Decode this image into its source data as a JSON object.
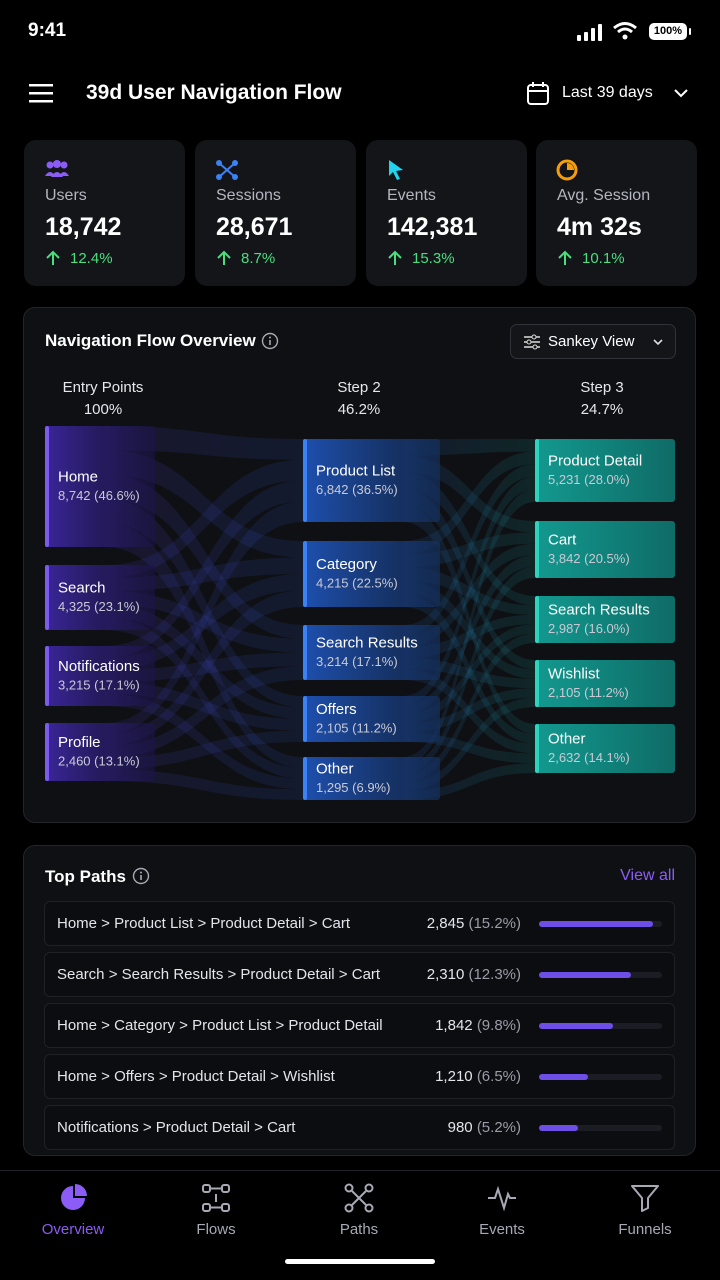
{
  "status": {
    "time": "9:41",
    "battery": "100%"
  },
  "header": {
    "title": "39d User Navigation Flow",
    "range": "Last 39 days"
  },
  "kpis": [
    {
      "label": "Users",
      "value": "18,742",
      "change": "12.4%"
    },
    {
      "label": "Sessions",
      "value": "28,671",
      "change": "8.7%"
    },
    {
      "label": "Events",
      "value": "142,381",
      "change": "15.3%"
    },
    {
      "label": "Avg. Session",
      "value": "4m 32s",
      "change": "10.1%"
    }
  ],
  "flow": {
    "title": "Navigation Flow Overview",
    "view": "Sankey View",
    "columns": [
      {
        "title": "Entry Points",
        "share": "100%",
        "nodes": [
          {
            "label": "Home",
            "value": "8,742 (46.6%)"
          },
          {
            "label": "Search",
            "value": "4,325 (23.1%)"
          },
          {
            "label": "Notifications",
            "value": "3,215 (17.1%)"
          },
          {
            "label": "Profile",
            "value": "2,460 (13.1%)"
          }
        ]
      },
      {
        "title": "Step 2",
        "share": "46.2%",
        "nodes": [
          {
            "label": "Product List",
            "value": "6,842 (36.5%)"
          },
          {
            "label": "Category",
            "value": "4,215 (22.5%)"
          },
          {
            "label": "Search Results",
            "value": "3,214 (17.1%)"
          },
          {
            "label": "Offers",
            "value": "2,105 (11.2%)"
          },
          {
            "label": "Other",
            "value": "1,295 (6.9%)"
          }
        ]
      },
      {
        "title": "Step 3",
        "share": "24.7%",
        "nodes": [
          {
            "label": "Product Detail",
            "value": "5,231 (28.0%)"
          },
          {
            "label": "Cart",
            "value": "3,842 (20.5%)"
          },
          {
            "label": "Search Results",
            "value": "2,987 (16.0%)"
          },
          {
            "label": "Wishlist",
            "value": "2,105 (11.2%)"
          },
          {
            "label": "Other",
            "value": "2,632 (14.1%)"
          }
        ]
      }
    ]
  },
  "paths": {
    "title": "Top Paths",
    "action": "View all",
    "rows": [
      {
        "path": "Home > Product List > Product Detail > Cart",
        "count": "2,845",
        "share": {
          "value": 15.2,
          "label": "(15.2%)"
        }
      },
      {
        "path": "Search > Search Results > Product Detail > Cart",
        "count": "2,310",
        "share": {
          "value": 12.3,
          "label": "(12.3%)"
        }
      },
      {
        "path": "Home > Category > Product List > Product Detail",
        "count": "1,842",
        "share": {
          "value": 9.8,
          "label": "(9.8%)"
        }
      },
      {
        "path": "Home > Offers > Product Detail > Wishlist",
        "count": "1,210",
        "share": {
          "value": 6.5,
          "label": "(6.5%)"
        }
      },
      {
        "path": "Notifications > Product Detail > Cart",
        "count": "980",
        "share": {
          "value": 5.2,
          "label": "(5.2%)"
        }
      }
    ]
  },
  "nav": {
    "active": 0,
    "items": [
      "Overview",
      "Flows",
      "Paths",
      "Events",
      "Funnels"
    ]
  }
}
